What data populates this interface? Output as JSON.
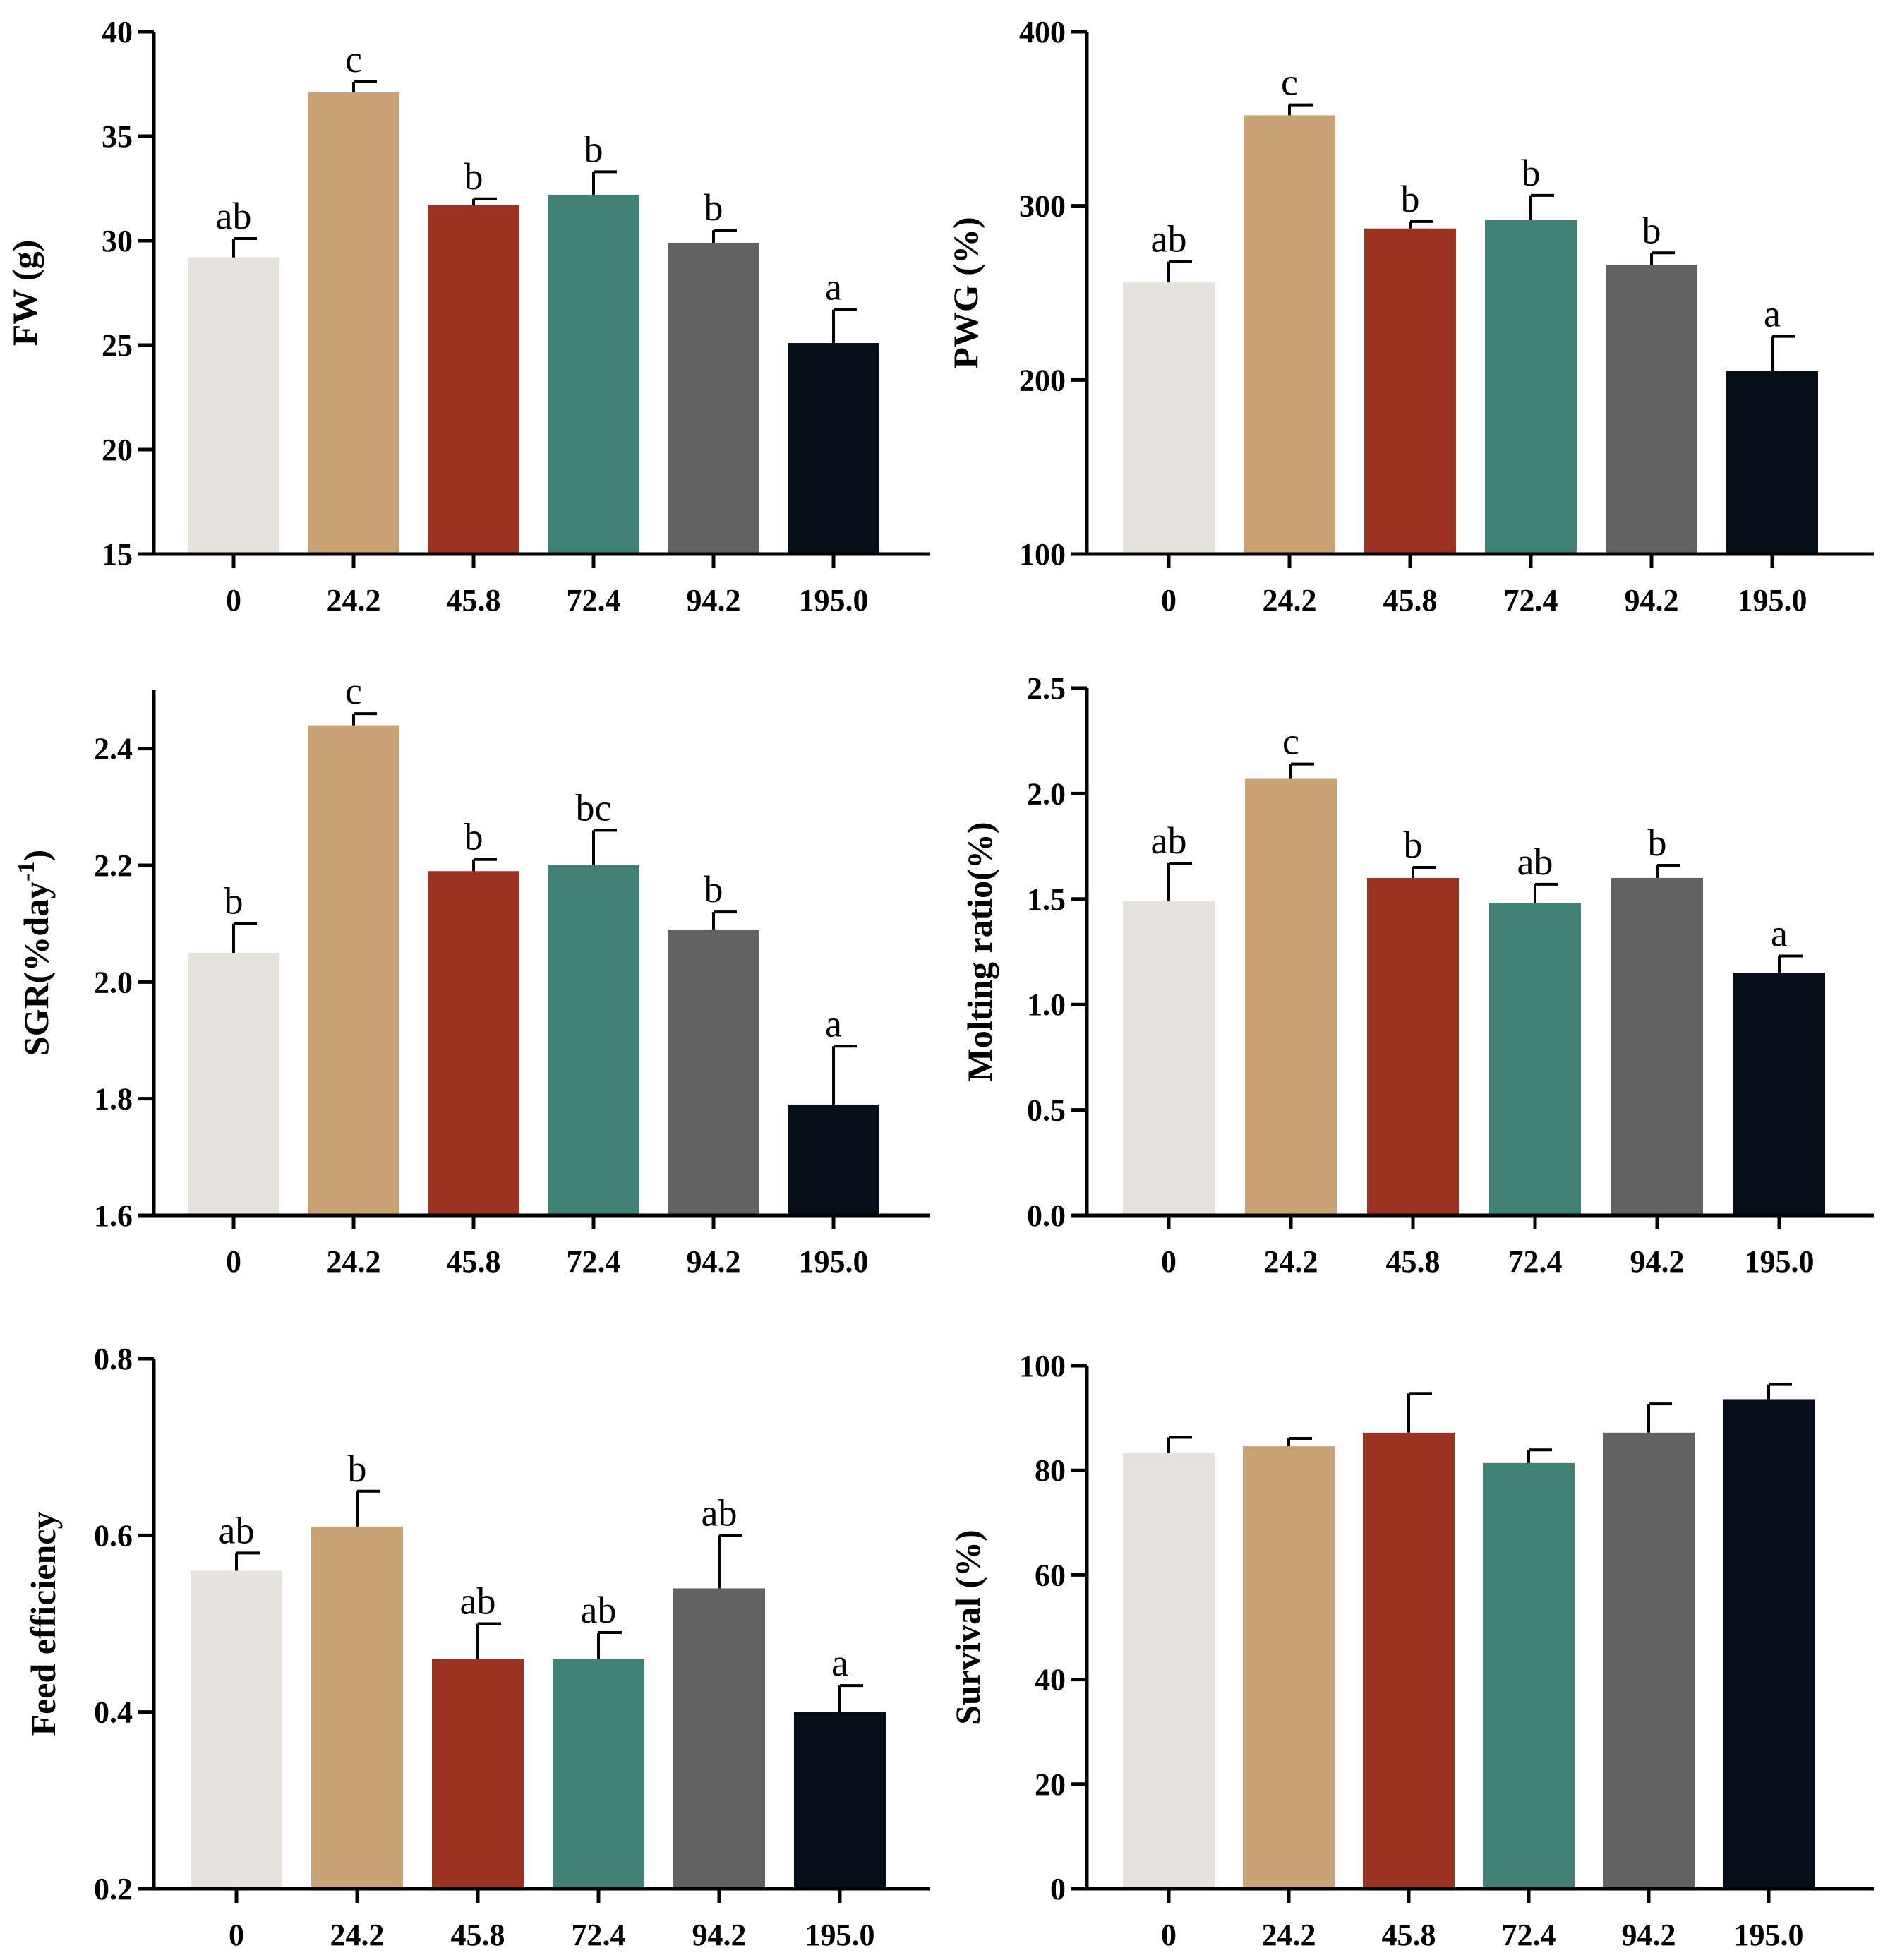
{
  "colors": [
    "#e6e3dc",
    "#c9a273",
    "#9a3321",
    "#418074",
    "#626262",
    "#050e18"
  ],
  "chart_data": [
    {
      "type": "bar",
      "ylabel": "FW (g)",
      "ylim": [
        15,
        40
      ],
      "yticks": [
        "15",
        "20",
        "25",
        "30",
        "35",
        "40"
      ],
      "categories": [
        "0",
        "24.2",
        "45.8",
        "72.4",
        "94.2",
        "195.0"
      ],
      "values": [
        29.2,
        37.1,
        31.7,
        32.2,
        29.9,
        25.1
      ],
      "errors": [
        0.9,
        0.5,
        0.3,
        1.1,
        0.6,
        1.6
      ],
      "letters": [
        "ab",
        "c",
        "b",
        "b",
        "b",
        "a"
      ]
    },
    {
      "type": "bar",
      "ylabel": "PWG (%)",
      "ylim": [
        100,
        400
      ],
      "yticks": [
        "100",
        "200",
        "300",
        "400"
      ],
      "categories": [
        "0",
        "24.2",
        "45.8",
        "72.4",
        "94.2",
        "195.0"
      ],
      "values": [
        256,
        352,
        287,
        292,
        266,
        205
      ],
      "errors": [
        12,
        6,
        4,
        14,
        7,
        20
      ],
      "letters": [
        "ab",
        "c",
        "b",
        "b",
        "b",
        "a"
      ]
    },
    {
      "type": "bar",
      "ylabel": "SGR(%day-1)",
      "ylabel_main": "SGR(%day",
      "ylabel_sup": "-1",
      "ylabel_tail": ")",
      "ylim": [
        1.6,
        2.5
      ],
      "yticks": [
        "1.6",
        "1.8",
        "2.0",
        "2.2",
        "2.4"
      ],
      "categories": [
        "0",
        "24.2",
        "45.8",
        "72.4",
        "94.2",
        "195.0"
      ],
      "values": [
        2.05,
        2.44,
        2.19,
        2.2,
        2.09,
        1.79
      ],
      "errors": [
        0.05,
        0.02,
        0.02,
        0.06,
        0.03,
        0.1
      ],
      "letters": [
        "b",
        "c",
        "b",
        "bc",
        "b",
        "a"
      ]
    },
    {
      "type": "bar",
      "ylabel": "Molting ratio(%)",
      "ylim": [
        0,
        2.5
      ],
      "yticks": [
        "0.0",
        "0.5",
        "1.0",
        "1.5",
        "2.0",
        "2.5"
      ],
      "categories": [
        "0",
        "24.2",
        "45.8",
        "72.4",
        "94.2",
        "195.0"
      ],
      "values": [
        1.49,
        2.07,
        1.6,
        1.48,
        1.6,
        1.15
      ],
      "errors": [
        0.18,
        0.07,
        0.05,
        0.09,
        0.06,
        0.08
      ],
      "letters": [
        "ab",
        "c",
        "b",
        "ab",
        "b",
        "a"
      ]
    },
    {
      "type": "bar",
      "ylabel": "Feed efficiency",
      "ylim": [
        0.2,
        0.8
      ],
      "yticks": [
        "0.2",
        "0.4",
        "0.6",
        "0.8"
      ],
      "categories": [
        "0",
        "24.2",
        "45.8",
        "72.4",
        "94.2",
        "195.0"
      ],
      "values": [
        0.56,
        0.61,
        0.46,
        0.46,
        0.54,
        0.4
      ],
      "errors": [
        0.02,
        0.04,
        0.04,
        0.03,
        0.06,
        0.03
      ],
      "letters": [
        "ab",
        "b",
        "ab",
        "ab",
        "ab",
        "a"
      ]
    },
    {
      "type": "bar",
      "ylabel": "Survival (%)",
      "ylim": [
        0,
        100
      ],
      "yticks": [
        "0",
        "20",
        "40",
        "60",
        "80",
        "100"
      ],
      "categories": [
        "0",
        "24.2",
        "45.8",
        "72.4",
        "94.2",
        "195.0"
      ],
      "values": [
        83.3,
        84.6,
        87.2,
        81.4,
        87.2,
        93.6
      ],
      "errors": [
        3.0,
        1.5,
        7.5,
        2.5,
        5.5,
        2.8
      ],
      "letters": [
        "",
        "",
        "",
        "",
        "",
        ""
      ]
    }
  ]
}
